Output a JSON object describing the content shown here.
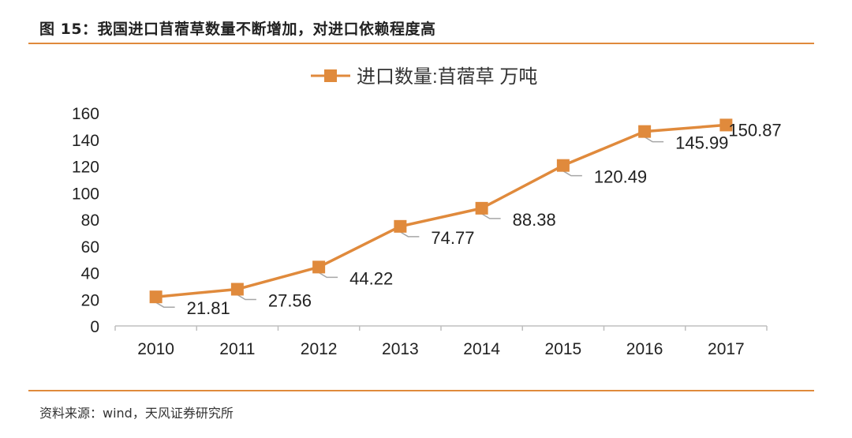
{
  "figure": {
    "title": "图 15：我国进口苜蓿草数量不断增加，对进口依赖程度高",
    "source": "资料来源：wind，天风证券研究所"
  },
  "colors": {
    "accent": "#e08a3c",
    "leader": "#a6a6a6",
    "axis": "#bfbfbf",
    "text": "#222222"
  },
  "chart_data": {
    "type": "line",
    "categories": [
      "2010",
      "2011",
      "2012",
      "2013",
      "2014",
      "2015",
      "2016",
      "2017"
    ],
    "series": [
      {
        "name": "进口数量:苜蓿草 万吨",
        "values": [
          21.81,
          27.56,
          44.22,
          74.77,
          88.38,
          120.49,
          145.99,
          150.87
        ],
        "marker": "square"
      }
    ],
    "data_labels": [
      "21.81",
      "27.56",
      "44.22",
      "74.77",
      "88.38",
      "120.49",
      "145.99",
      "150.87"
    ],
    "y_ticks": [
      "0",
      "20",
      "40",
      "60",
      "80",
      "100",
      "120",
      "140",
      "160"
    ],
    "ylim": [
      0,
      160
    ],
    "grid": false,
    "legend": "top-center"
  }
}
